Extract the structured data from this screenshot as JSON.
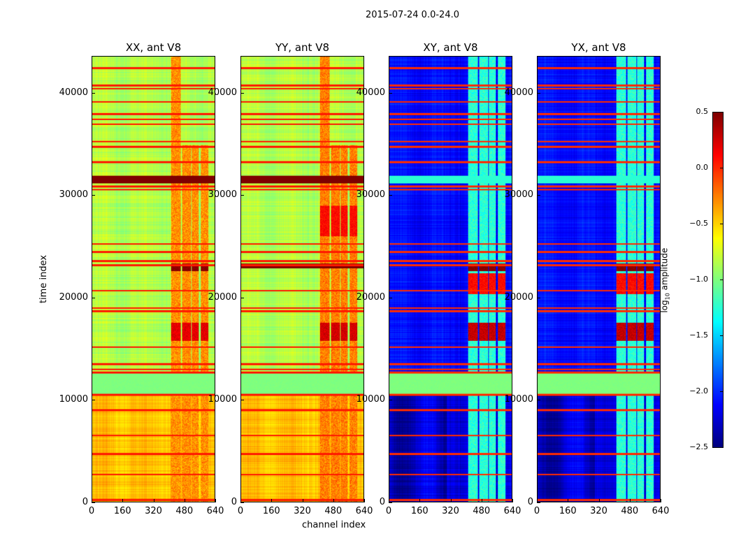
{
  "chart_data": {
    "type": "heatmap",
    "suptitle": "2015-07-24 0.0-24.0",
    "xlabel": "channel index",
    "ylabel": "time index",
    "xlim": [
      0,
      640
    ],
    "ylim": [
      0,
      43600
    ],
    "xticks": [
      "0",
      "160",
      "320",
      "480",
      "640"
    ],
    "yticks": [
      "0",
      "10000",
      "20000",
      "30000",
      "40000"
    ],
    "xtick_values": [
      0,
      160,
      320,
      480,
      640
    ],
    "ytick_values": [
      0,
      10000,
      20000,
      30000,
      40000
    ],
    "colormap": "jet",
    "colorbar": {
      "label_main": "log",
      "label_sub": "10",
      "label_rest": " amplitude",
      "range": [
        -2.5,
        0.5
      ],
      "ticks": [
        "0.5",
        "0.0",
        "−0.5",
        "−1.0",
        "−1.5",
        "−2.0",
        "−2.5"
      ],
      "tick_values": [
        0.5,
        0.0,
        -0.5,
        -1.0,
        -1.5,
        -2.0,
        -2.5
      ]
    },
    "panels": [
      {
        "title": "XX, ant V8",
        "base": -0.85,
        "low_base": -0.45,
        "col_value": -0.3,
        "flag_value": 0.05,
        "bands": [
          [
            31200,
            32000,
            0.5
          ],
          [
            10600,
            12600,
            -1.0
          ]
        ],
        "col_bands": [
          [
            22600,
            23400,
            0.5
          ],
          [
            15800,
            17600,
            0.2
          ]
        ]
      },
      {
        "title": "YY, ant V8",
        "base": -0.85,
        "low_base": -0.45,
        "col_value": -0.25,
        "flag_value": 0.05,
        "bands": [
          [
            31200,
            32000,
            0.5
          ],
          [
            22900,
            23400,
            0.5
          ],
          [
            10600,
            12600,
            -1.0
          ]
        ],
        "col_bands": [
          [
            15800,
            17600,
            0.25
          ],
          [
            26000,
            29000,
            0.1
          ]
        ]
      },
      {
        "title": "XY, ant V8",
        "base": -2.1,
        "low_base": -2.2,
        "col_value": -1.25,
        "flag_value": 0.0,
        "bands": [
          [
            31200,
            32000,
            -1.25
          ],
          [
            10600,
            12600,
            -1.0
          ]
        ],
        "col_bands": [
          [
            22600,
            23400,
            0.5
          ],
          [
            15800,
            17600,
            0.3
          ],
          [
            20400,
            22400,
            0.1
          ]
        ]
      },
      {
        "title": "YX, ant V8",
        "base": -2.1,
        "low_base": -2.2,
        "col_value": -1.25,
        "flag_value": 0.0,
        "bands": [
          [
            31200,
            32000,
            -1.25
          ],
          [
            10600,
            12600,
            -1.0
          ]
        ],
        "col_bands": [
          [
            22600,
            23400,
            0.5
          ],
          [
            15800,
            17600,
            0.3
          ],
          [
            20400,
            22400,
            0.1
          ]
        ]
      }
    ],
    "bright_channel_ranges": [
      [
        410,
        460
      ],
      [
        470,
        515
      ],
      [
        520,
        555
      ],
      [
        565,
        605
      ]
    ],
    "flagged_times": [
      200,
      2700,
      4700,
      6500,
      9000,
      10500,
      12700,
      13000,
      13500,
      15200,
      18700,
      19000,
      20700,
      23200,
      23600,
      24500,
      25300,
      30600,
      30900,
      33300,
      34800,
      35300,
      37000,
      37500,
      38000,
      39200,
      40500,
      40800,
      42500
    ]
  }
}
